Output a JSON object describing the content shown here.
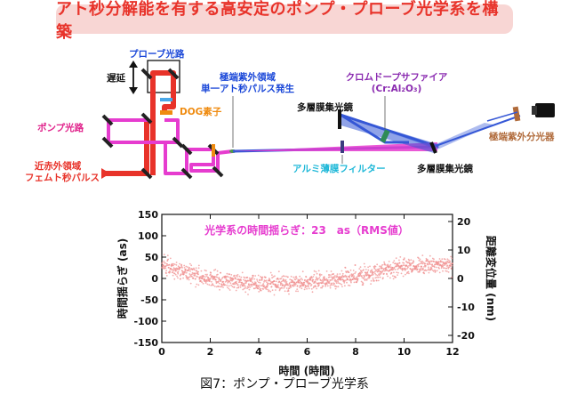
{
  "title": "アト秒分解能を有する高安定のポンプ・プローブ光学系を構築",
  "diagram": {
    "labels": {
      "probe_path": "プローブ光路",
      "delay": "遅延",
      "dog_element": "DOG素子",
      "pump_path": "ポンプ光路",
      "nir_line1": "近赤外領域",
      "nir_line2": "フェムト秒パルス",
      "euv_single_line1": "極端紫外領域",
      "euv_single_line2": "単一アト秒パルス発生",
      "multilayer_mirror_top": "多層膜集光鏡",
      "chromium_doped_line1": "クロムドープサファイア",
      "chromium_doped_line2": "(Cr:Al₂O₃)",
      "euv_spectrometer": "極端紫外分光器",
      "aluminum_filter": "アルミ薄膜フィルター",
      "multilayer_mirror_bottom": "多層膜集光鏡"
    },
    "colors": {
      "red_beam": "#e8332a",
      "pink_beam": "#e63ccf",
      "blue_beam": "#3557d6",
      "title_bg": "#f8d6d4"
    }
  },
  "chart_data": {
    "type": "scatter",
    "annotation": "光学系の時間揺らぎ：23　as（RMS値）",
    "xlabel": "時間 (時間)",
    "ylabel": "時間揺らぎ (as)",
    "y2label": "距離変位量 (nm)",
    "xlim": [
      0,
      12
    ],
    "ylim": [
      -150,
      150
    ],
    "y2lim": [
      -22.5,
      22.5
    ],
    "xticks": [
      "0",
      "2",
      "4",
      "6",
      "8",
      "10",
      "12"
    ],
    "yticks": [
      "150",
      "100",
      "50",
      "0",
      "-50",
      "-100",
      "-150"
    ],
    "y2ticks": [
      "20",
      "10",
      "0",
      "-10",
      "-20"
    ],
    "trend": {
      "x": [
        0,
        1,
        2,
        3,
        4,
        5,
        6,
        7,
        8,
        9,
        10,
        11,
        12
      ],
      "y": [
        35,
        15,
        0,
        -8,
        -12,
        -12,
        -8,
        -3,
        5,
        15,
        28,
        30,
        32
      ]
    },
    "rms_as": 23,
    "point_color": "#f08a8a"
  },
  "caption": "図7：ポンプ・プローブ光学系"
}
